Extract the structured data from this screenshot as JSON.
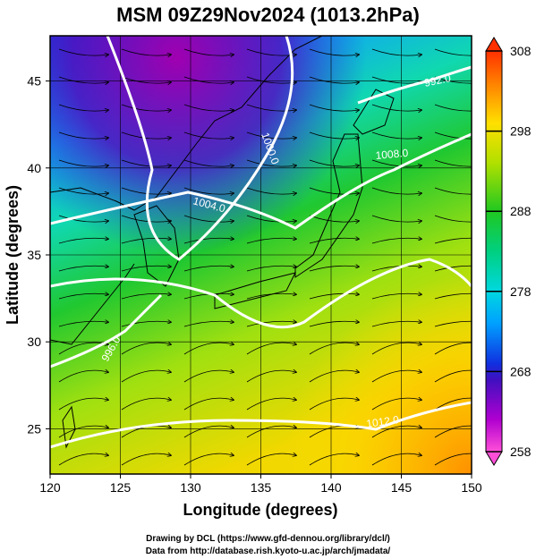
{
  "title": "MSM 09Z29Nov2024 (1013.2hPa)",
  "credits": {
    "line1": "Drawing by DCL (https://www.gfd-dennou.org/library/dcl/)",
    "line2": "Data from http://database.rish.kyoto-u.ac.jp/arch/jmadata/"
  },
  "chart_data": {
    "type": "heatmap",
    "xlabel": "Longitude (degrees)",
    "ylabel": "Latitude  (degrees)",
    "xlim": [
      120,
      150
    ],
    "ylim": [
      22.4,
      47.6
    ],
    "xticks": [
      120,
      125,
      130,
      135,
      140,
      145,
      150
    ],
    "yticks": [
      25,
      30,
      35,
      40,
      45
    ],
    "colorbar": {
      "min": 258,
      "max": 308,
      "ticks": [
        258,
        268,
        278,
        288,
        298,
        308
      ],
      "colors": [
        "#ff4fd8",
        "#a000c8",
        "#2030e0",
        "#00b4ff",
        "#00e0a0",
        "#20d020",
        "#a0e000",
        "#ffe000",
        "#ff8000",
        "#ff3000"
      ]
    },
    "isobars": [
      {
        "label": "1000.0"
      },
      {
        "label": "1004.0"
      },
      {
        "label": "1008.0"
      },
      {
        "label": "1012.0"
      },
      {
        "label": "996.0"
      },
      {
        "label": "992.0"
      }
    ],
    "overlays": [
      "streamlines",
      "coastlines",
      "lat-lon grid"
    ]
  }
}
